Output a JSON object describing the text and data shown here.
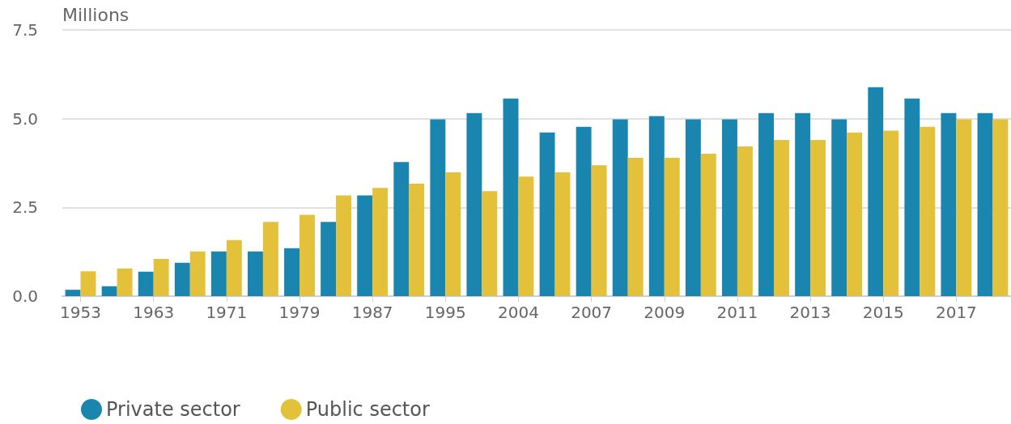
{
  "chart_data": {
    "type": "bar",
    "ylabel": "Millions",
    "categories": [
      "1953",
      null,
      "1963",
      null,
      "1971",
      null,
      "1979",
      null,
      "1987",
      null,
      "1995",
      null,
      "2004",
      null,
      "2007",
      null,
      "2009",
      null,
      "2011",
      null,
      "2013",
      null,
      "2015",
      null,
      "2017",
      null
    ],
    "series": [
      {
        "name": "Private sector",
        "color": "#1a86b0",
        "values": [
          0.18,
          0.28,
          0.69,
          0.94,
          1.26,
          1.26,
          1.35,
          2.09,
          2.84,
          3.78,
          4.98,
          5.16,
          5.57,
          4.61,
          4.77,
          4.98,
          5.07,
          4.98,
          4.98,
          5.16,
          5.16,
          4.98,
          5.89,
          5.57,
          5.16,
          5.16
        ]
      },
      {
        "name": "Public sector",
        "color": "#e3c13b",
        "values": [
          0.7,
          0.78,
          1.05,
          1.26,
          1.58,
          2.09,
          2.29,
          2.84,
          3.05,
          3.17,
          3.49,
          2.96,
          3.37,
          3.49,
          3.69,
          3.9,
          3.9,
          4.01,
          4.22,
          4.4,
          4.4,
          4.61,
          4.66,
          4.77,
          4.98,
          4.98
        ]
      }
    ],
    "ylim": [
      0,
      7.5
    ],
    "yticks": [
      {
        "value": 0,
        "label": "0.0"
      },
      {
        "value": 2.5,
        "label": "2.5"
      },
      {
        "value": 5,
        "label": "5.0"
      },
      {
        "value": 7.5,
        "label": "7.5"
      }
    ],
    "grid": "y",
    "legend": "bottom left"
  }
}
